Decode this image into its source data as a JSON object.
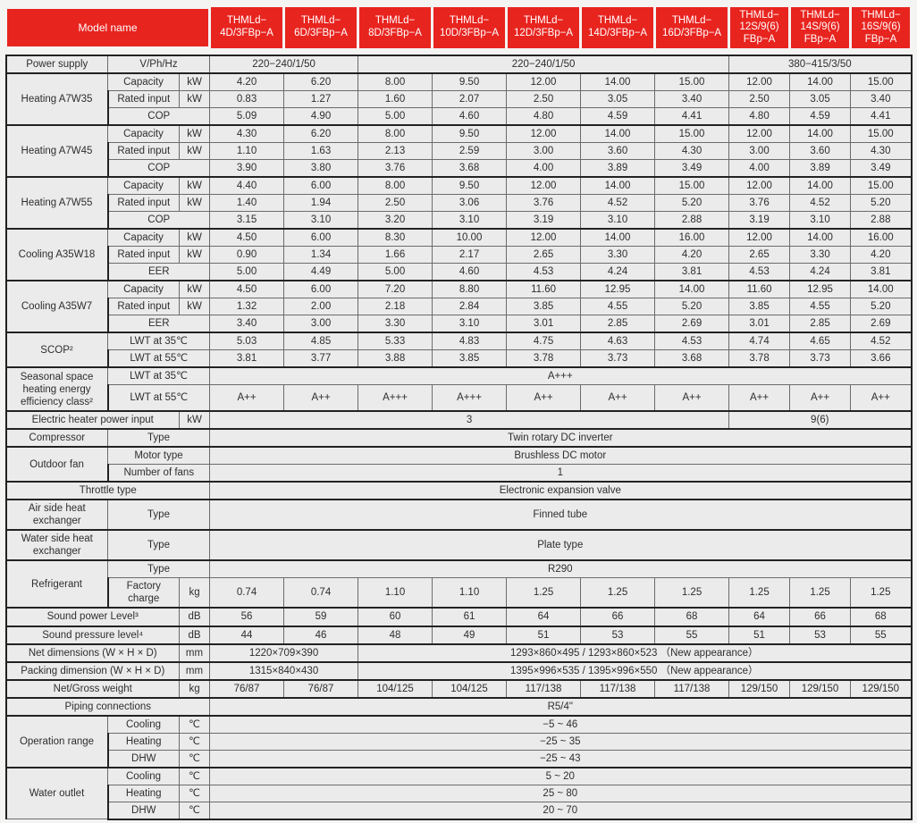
{
  "colors": {
    "header_bg": "#e8241f",
    "header_text": "#ffffff",
    "cell_bg": "#ebebeb",
    "border_heavy": "#222222",
    "border_light": "#6b6b6b"
  },
  "header": {
    "model_label": "Model name",
    "models": [
      [
        "THMLd−",
        "4D/3FBp−A"
      ],
      [
        "THMLd−",
        "6D/3FBp−A"
      ],
      [
        "THMLd−",
        "8D/3FBp−A"
      ],
      [
        "THMLd−",
        "10D/3FBp−A"
      ],
      [
        "THMLd−",
        "12D/3FBp−A"
      ],
      [
        "THMLd−",
        "14D/3FBp−A"
      ],
      [
        "THMLd−",
        "16D/3FBp−A"
      ],
      [
        "THMLd−",
        "12S/9(6)",
        "FBp−A"
      ],
      [
        "THMLd−",
        "14S/9(6)",
        "FBp−A"
      ],
      [
        "THMLd−",
        "16S/9(6)",
        "FBp−A"
      ]
    ]
  },
  "rows": [
    {
      "name": "row-power-supply",
      "top": true,
      "cells": [
        {
          "t": "Power supply"
        },
        {
          "t": "V/Ph/Hz",
          "cs": 2
        },
        {
          "t": "220−240/1/50",
          "cs": 2
        },
        {
          "t": "220−240/1/50",
          "cs": 5
        },
        {
          "t": "380−415/3/50",
          "cs": 3
        }
      ]
    },
    {
      "name": "row-heating-a7w35-capacity",
      "g": true,
      "cells": [
        {
          "t": "Heating A7W35",
          "rs": 3
        },
        {
          "t": "Capacity"
        },
        {
          "t": "kW"
        },
        "4.20",
        "6.20",
        "8.00",
        "9.50",
        "12.00",
        "14.00",
        "15.00",
        "12.00",
        "14.00",
        "15.00"
      ]
    },
    {
      "name": "row-heating-a7w35-rated-input",
      "cells": [
        {
          "t": "Rated input"
        },
        {
          "t": "kW"
        },
        "0.83",
        "1.27",
        "1.60",
        "2.07",
        "2.50",
        "3.05",
        "3.40",
        "2.50",
        "3.05",
        "3.40"
      ]
    },
    {
      "name": "row-heating-a7w35-cop",
      "cells": [
        {
          "t": "COP",
          "cs": 2
        },
        "5.09",
        "4.90",
        "5.00",
        "4.60",
        "4.80",
        "4.59",
        "4.41",
        "4.80",
        "4.59",
        "4.41"
      ]
    },
    {
      "name": "row-heating-a7w45-capacity",
      "g": true,
      "cells": [
        {
          "t": "Heating A7W45",
          "rs": 3
        },
        {
          "t": "Capacity"
        },
        {
          "t": "kW"
        },
        "4.30",
        "6.20",
        "8.00",
        "9.50",
        "12.00",
        "14.00",
        "15.00",
        "12.00",
        "14.00",
        "15.00"
      ]
    },
    {
      "name": "row-heating-a7w45-rated-input",
      "cells": [
        {
          "t": "Rated input"
        },
        {
          "t": "kW"
        },
        "1.10",
        "1.63",
        "2.13",
        "2.59",
        "3.00",
        "3.60",
        "4.30",
        "3.00",
        "3.60",
        "4.30"
      ]
    },
    {
      "name": "row-heating-a7w45-cop",
      "cells": [
        {
          "t": "COP",
          "cs": 2
        },
        "3.90",
        "3.80",
        "3.76",
        "3.68",
        "4.00",
        "3.89",
        "3.49",
        "4.00",
        "3.89",
        "3.49"
      ]
    },
    {
      "name": "row-heating-a7w55-capacity",
      "g": true,
      "cells": [
        {
          "t": "Heating A7W55",
          "rs": 3
        },
        {
          "t": "Capacity"
        },
        {
          "t": "kW"
        },
        "4.40",
        "6.00",
        "8.00",
        "9.50",
        "12.00",
        "14.00",
        "15.00",
        "12.00",
        "14.00",
        "15.00"
      ]
    },
    {
      "name": "row-heating-a7w55-rated-input",
      "cells": [
        {
          "t": "Rated input"
        },
        {
          "t": "kW"
        },
        "1.40",
        "1.94",
        "2.50",
        "3.06",
        "3.76",
        "4.52",
        "5.20",
        "3.76",
        "4.52",
        "5.20"
      ]
    },
    {
      "name": "row-heating-a7w55-cop",
      "cells": [
        {
          "t": "COP",
          "cs": 2
        },
        "3.15",
        "3.10",
        "3.20",
        "3.10",
        "3.19",
        "3.10",
        "2.88",
        "3.19",
        "3.10",
        "2.88"
      ]
    },
    {
      "name": "row-cooling-a35w18-capacity",
      "g": true,
      "cells": [
        {
          "t": "Cooling A35W18",
          "rs": 3
        },
        {
          "t": "Capacity"
        },
        {
          "t": "kW"
        },
        "4.50",
        "6.00",
        "8.30",
        "10.00",
        "12.00",
        "14.00",
        "16.00",
        "12.00",
        "14.00",
        "16.00"
      ]
    },
    {
      "name": "row-cooling-a35w18-rated-input",
      "cells": [
        {
          "t": "Rated input"
        },
        {
          "t": "kW"
        },
        "0.90",
        "1.34",
        "1.66",
        "2.17",
        "2.65",
        "3.30",
        "4.20",
        "2.65",
        "3.30",
        "4.20"
      ]
    },
    {
      "name": "row-cooling-a35w18-eer",
      "cells": [
        {
          "t": "EER",
          "cs": 2
        },
        "5.00",
        "4.49",
        "5.00",
        "4.60",
        "4.53",
        "4.24",
        "3.81",
        "4.53",
        "4.24",
        "3.81"
      ]
    },
    {
      "name": "row-cooling-a35w7-capacity",
      "g": true,
      "cells": [
        {
          "t": "Cooling A35W7",
          "rs": 3
        },
        {
          "t": "Capacity"
        },
        {
          "t": "kW"
        },
        "4.50",
        "6.00",
        "7.20",
        "8.80",
        "11.60",
        "12.95",
        "14.00",
        "11.60",
        "12.95",
        "14.00"
      ]
    },
    {
      "name": "row-cooling-a35w7-rated-input",
      "cells": [
        {
          "t": "Rated input"
        },
        {
          "t": "kW"
        },
        "1.32",
        "2.00",
        "2.18",
        "2.84",
        "3.85",
        "4.55",
        "5.20",
        "3.85",
        "4.55",
        "5.20"
      ]
    },
    {
      "name": "row-cooling-a35w7-eer",
      "cells": [
        {
          "t": "EER",
          "cs": 2
        },
        "3.40",
        "3.00",
        "3.30",
        "3.10",
        "3.01",
        "2.85",
        "2.69",
        "3.01",
        "2.85",
        "2.69"
      ]
    },
    {
      "name": "row-scop-lwt35",
      "g": true,
      "cells": [
        {
          "t": "SCOP²",
          "rs": 2
        },
        {
          "t": "LWT at 35℃",
          "cs": 2
        },
        "5.03",
        "4.85",
        "5.33",
        "4.83",
        "4.75",
        "4.63",
        "4.53",
        "4.74",
        "4.65",
        "4.52"
      ]
    },
    {
      "name": "row-scop-lwt55",
      "cells": [
        {
          "t": "LWT at 55℃",
          "cs": 2
        },
        "3.81",
        "3.77",
        "3.88",
        "3.85",
        "3.78",
        "3.73",
        "3.68",
        "3.78",
        "3.73",
        "3.66"
      ]
    },
    {
      "name": "row-seasonal-class-lwt35",
      "g": true,
      "cells": [
        {
          "t": "Seasonal space heating energy efficiency class²",
          "rs": 2
        },
        {
          "t": "LWT at 35℃",
          "cs": 2
        },
        {
          "t": "A+++",
          "cs": 10
        }
      ]
    },
    {
      "name": "row-seasonal-class-lwt55",
      "hc": "h26",
      "cells": [
        {
          "t": "LWT at 55℃",
          "cs": 2
        },
        "A++",
        "A++",
        "A+++",
        "A+++",
        "A++",
        "A++",
        "A++",
        "A++",
        "A++",
        "A++"
      ]
    },
    {
      "name": "row-electric-heater",
      "g": true,
      "cells": [
        {
          "t": "Electric heater power input",
          "cs": 2
        },
        {
          "t": "kW"
        },
        {
          "t": "3",
          "cs": 7
        },
        {
          "t": "9(6)",
          "cs": 3
        }
      ]
    },
    {
      "name": "row-compressor-type",
      "g": true,
      "cells": [
        {
          "t": "Compressor"
        },
        {
          "t": "Type",
          "cs": 2
        },
        {
          "t": "Twin rotary DC inverter",
          "cs": 10
        }
      ]
    },
    {
      "name": "row-outdoor-fan-motor",
      "g": true,
      "cells": [
        {
          "t": "Outdoor fan",
          "rs": 2
        },
        {
          "t": "Motor type",
          "cs": 2
        },
        {
          "t": "Brushless DC motor",
          "cs": 10
        }
      ]
    },
    {
      "name": "row-outdoor-fan-count",
      "cells": [
        {
          "t": "Number of fans",
          "cs": 2
        },
        {
          "t": "1",
          "cs": 10
        }
      ]
    },
    {
      "name": "row-throttle-type",
      "g": true,
      "cells": [
        {
          "t": "Throttle type",
          "cs": 3
        },
        {
          "t": "Electronic expansion valve",
          "cs": 10
        }
      ]
    },
    {
      "name": "row-air-side-hx",
      "g": true,
      "hc": "h30",
      "cells": [
        {
          "t": "Air side heat exchanger"
        },
        {
          "t": "Type",
          "cs": 2
        },
        {
          "t": "Finned tube",
          "cs": 10
        }
      ]
    },
    {
      "name": "row-water-side-hx",
      "g": true,
      "hc": "h30",
      "cells": [
        {
          "t": "Water side heat exchanger"
        },
        {
          "t": "Type",
          "cs": 2
        },
        {
          "t": "Plate type",
          "cs": 10
        }
      ]
    },
    {
      "name": "row-refrigerant-type",
      "g": true,
      "cells": [
        {
          "t": "Refrigerant",
          "rs": 2
        },
        {
          "t": "Type",
          "cs": 2
        },
        {
          "t": "R290",
          "cs": 10
        }
      ]
    },
    {
      "name": "row-refrigerant-charge",
      "hc": "h30",
      "cells": [
        {
          "t": "Factory charge"
        },
        {
          "t": "kg"
        },
        "0.74",
        "0.74",
        "1.10",
        "1.10",
        "1.25",
        "1.25",
        "1.25",
        "1.25",
        "1.25",
        "1.25"
      ]
    },
    {
      "name": "row-sound-power",
      "g": true,
      "cells": [
        {
          "t": "Sound power Level³",
          "cs": 2
        },
        {
          "t": "dB"
        },
        "56",
        "59",
        "60",
        "61",
        "64",
        "66",
        "68",
        "64",
        "66",
        "68"
      ]
    },
    {
      "name": "row-sound-pressure",
      "g": true,
      "cells": [
        {
          "t": "Sound pressure level⁴",
          "cs": 2
        },
        {
          "t": "dB"
        },
        "44",
        "46",
        "48",
        "49",
        "51",
        "53",
        "55",
        "51",
        "53",
        "55"
      ]
    },
    {
      "name": "row-net-dimensions",
      "g": true,
      "cells": [
        {
          "t": "Net dimensions (W × H × D)",
          "cs": 2
        },
        {
          "t": "mm"
        },
        {
          "t": "1220×709×390",
          "cs": 2
        },
        {
          "t": "1293×860×495 / 1293×860×523 （New appearance）",
          "cs": 8
        }
      ]
    },
    {
      "name": "row-packing-dimension",
      "g": true,
      "cells": [
        {
          "t": "Packing dimension (W × H × D)",
          "cs": 2
        },
        {
          "t": "mm"
        },
        {
          "t": "1315×840×430",
          "cs": 2
        },
        {
          "t": "1395×996×535 / 1395×996×550 （New appearance）",
          "cs": 8
        }
      ]
    },
    {
      "name": "row-weight",
      "g": true,
      "cells": [
        {
          "t": "Net/Gross weight",
          "cs": 2
        },
        {
          "t": "kg"
        },
        "76/87",
        "76/87",
        "104/125",
        "104/125",
        "117/138",
        "117/138",
        "117/138",
        "129/150",
        "129/150",
        "129/150"
      ]
    },
    {
      "name": "row-piping-connections",
      "g": true,
      "cells": [
        {
          "t": "Piping connections",
          "cs": 3
        },
        {
          "t": "R5/4\"",
          "cs": 10
        }
      ]
    },
    {
      "name": "row-operation-cooling",
      "g": true,
      "cells": [
        {
          "t": "Operation range",
          "rs": 3
        },
        {
          "t": "Cooling"
        },
        {
          "t": "℃"
        },
        {
          "t": "−5 ~ 46",
          "cs": 10
        }
      ]
    },
    {
      "name": "row-operation-heating",
      "cells": [
        {
          "t": "Heating"
        },
        {
          "t": "℃"
        },
        {
          "t": "−25 ~ 35",
          "cs": 10
        }
      ]
    },
    {
      "name": "row-operation-dhw",
      "cells": [
        {
          "t": "DHW"
        },
        {
          "t": "℃"
        },
        {
          "t": "−25 ~ 43",
          "cs": 10
        }
      ]
    },
    {
      "name": "row-water-outlet-cooling",
      "g": true,
      "cells": [
        {
          "t": "Water outlet",
          "rs": 3
        },
        {
          "t": "Cooling"
        },
        {
          "t": "℃"
        },
        {
          "t": "5 ~ 20",
          "cs": 10
        }
      ]
    },
    {
      "name": "row-water-outlet-heating",
      "cells": [
        {
          "t": "Heating"
        },
        {
          "t": "℃"
        },
        {
          "t": "25 ~ 80",
          "cs": 10
        }
      ]
    },
    {
      "name": "row-water-outlet-dhw",
      "cells": [
        {
          "t": "DHW"
        },
        {
          "t": "℃"
        },
        {
          "t": "20 ~ 70",
          "cs": 10
        }
      ]
    }
  ]
}
